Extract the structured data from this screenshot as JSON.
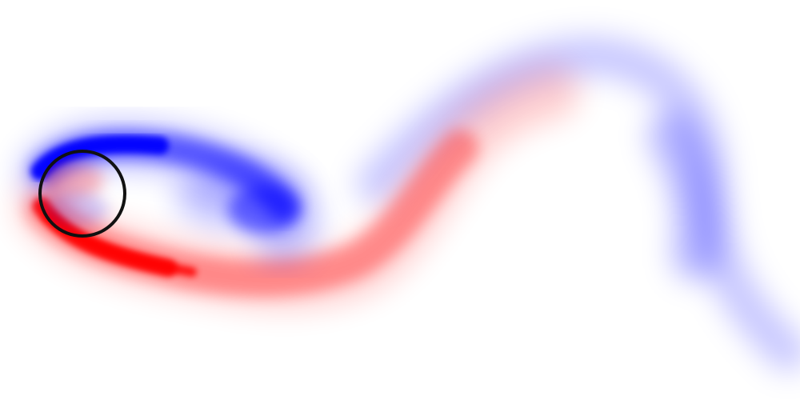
{
  "scene": {
    "background_color": "#ffffff",
    "positive_vorticity_color": "#ff0000",
    "negative_vorticity_color": "#0000ff",
    "cylinder": {
      "fill_color": "#ffffff",
      "outline_color": "#111111"
    }
  }
}
